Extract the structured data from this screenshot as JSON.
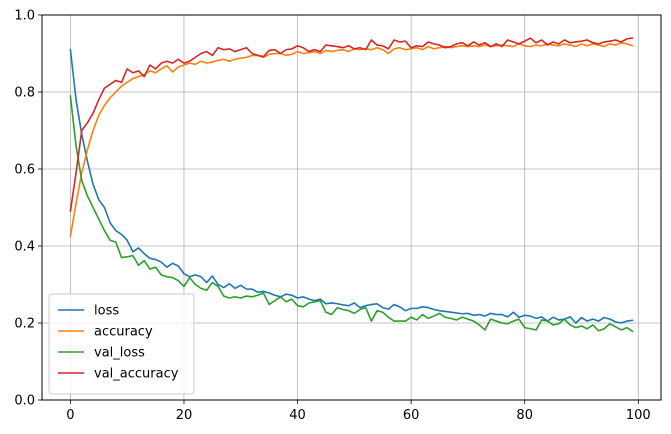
{
  "chart_data": {
    "type": "line",
    "title": "",
    "xlabel": "",
    "ylabel": "",
    "xlim": [
      -5,
      104
    ],
    "ylim": [
      0.0,
      1.0
    ],
    "x_ticks": [
      0,
      20,
      40,
      60,
      80,
      100
    ],
    "x_tick_labels": [
      "0",
      "20",
      "40",
      "60",
      "80",
      "100"
    ],
    "y_ticks": [
      0.0,
      0.2,
      0.4,
      0.6,
      0.8,
      1.0
    ],
    "y_tick_labels": [
      "0.0",
      "0.2",
      "0.4",
      "0.6",
      "0.8",
      "1.0"
    ],
    "grid": true,
    "legend_position": "lower-left",
    "x": [
      0,
      1,
      2,
      3,
      4,
      5,
      6,
      7,
      8,
      9,
      10,
      11,
      12,
      13,
      14,
      15,
      16,
      17,
      18,
      19,
      20,
      21,
      22,
      23,
      24,
      25,
      26,
      27,
      28,
      29,
      30,
      31,
      32,
      33,
      34,
      35,
      36,
      37,
      38,
      39,
      40,
      41,
      42,
      43,
      44,
      45,
      46,
      47,
      48,
      49,
      50,
      51,
      52,
      53,
      54,
      55,
      56,
      57,
      58,
      59,
      60,
      61,
      62,
      63,
      64,
      65,
      66,
      67,
      68,
      69,
      70,
      71,
      72,
      73,
      74,
      75,
      76,
      77,
      78,
      79,
      80,
      81,
      82,
      83,
      84,
      85,
      86,
      87,
      88,
      89,
      90,
      91,
      92,
      93,
      94,
      95,
      96,
      97,
      98,
      99
    ],
    "series": [
      {
        "name": "loss",
        "color": "#1f77b4",
        "values": [
          0.91,
          0.78,
          0.69,
          0.62,
          0.56,
          0.52,
          0.5,
          0.46,
          0.44,
          0.43,
          0.415,
          0.385,
          0.395,
          0.38,
          0.368,
          0.365,
          0.358,
          0.345,
          0.355,
          0.348,
          0.328,
          0.32,
          0.325,
          0.32,
          0.305,
          0.322,
          0.3,
          0.292,
          0.302,
          0.29,
          0.298,
          0.288,
          0.288,
          0.28,
          0.282,
          0.278,
          0.272,
          0.268,
          0.275,
          0.272,
          0.265,
          0.268,
          0.262,
          0.258,
          0.262,
          0.25,
          0.252,
          0.25,
          0.247,
          0.245,
          0.252,
          0.24,
          0.245,
          0.248,
          0.25,
          0.24,
          0.236,
          0.248,
          0.242,
          0.232,
          0.238,
          0.238,
          0.242,
          0.24,
          0.235,
          0.232,
          0.23,
          0.228,
          0.226,
          0.224,
          0.225,
          0.22,
          0.222,
          0.218,
          0.225,
          0.222,
          0.222,
          0.216,
          0.228,
          0.215,
          0.22,
          0.218,
          0.212,
          0.216,
          0.205,
          0.215,
          0.208,
          0.21,
          0.216,
          0.2,
          0.214,
          0.205,
          0.21,
          0.205,
          0.214,
          0.21,
          0.203,
          0.2,
          0.205,
          0.207
        ]
      },
      {
        "name": "accuracy",
        "color": "#ff7f0e",
        "values": [
          0.425,
          0.51,
          0.59,
          0.65,
          0.7,
          0.74,
          0.765,
          0.785,
          0.8,
          0.815,
          0.825,
          0.835,
          0.84,
          0.845,
          0.855,
          0.85,
          0.86,
          0.868,
          0.852,
          0.865,
          0.87,
          0.875,
          0.872,
          0.88,
          0.875,
          0.878,
          0.882,
          0.885,
          0.88,
          0.885,
          0.888,
          0.89,
          0.895,
          0.895,
          0.89,
          0.898,
          0.9,
          0.9,
          0.895,
          0.898,
          0.905,
          0.9,
          0.902,
          0.905,
          0.9,
          0.908,
          0.905,
          0.908,
          0.91,
          0.905,
          0.912,
          0.91,
          0.912,
          0.91,
          0.915,
          0.91,
          0.9,
          0.912,
          0.915,
          0.91,
          0.912,
          0.915,
          0.91,
          0.918,
          0.912,
          0.915,
          0.918,
          0.915,
          0.918,
          0.92,
          0.918,
          0.92,
          0.918,
          0.922,
          0.918,
          0.92,
          0.922,
          0.92,
          0.918,
          0.925,
          0.92,
          0.918,
          0.922,
          0.92,
          0.925,
          0.922,
          0.92,
          0.925,
          0.922,
          0.918,
          0.925,
          0.92,
          0.925,
          0.922,
          0.918,
          0.925,
          0.922,
          0.928,
          0.925,
          0.92
        ]
      },
      {
        "name": "val_loss",
        "color": "#2ca02c",
        "values": [
          0.79,
          0.66,
          0.57,
          0.53,
          0.5,
          0.47,
          0.44,
          0.415,
          0.41,
          0.37,
          0.372,
          0.375,
          0.35,
          0.362,
          0.34,
          0.345,
          0.325,
          0.32,
          0.318,
          0.31,
          0.295,
          0.318,
          0.3,
          0.29,
          0.285,
          0.305,
          0.295,
          0.27,
          0.265,
          0.268,
          0.265,
          0.27,
          0.268,
          0.272,
          0.278,
          0.248,
          0.258,
          0.268,
          0.255,
          0.262,
          0.245,
          0.242,
          0.252,
          0.255,
          0.258,
          0.228,
          0.222,
          0.24,
          0.235,
          0.232,
          0.225,
          0.235,
          0.24,
          0.205,
          0.232,
          0.228,
          0.215,
          0.205,
          0.205,
          0.205,
          0.215,
          0.208,
          0.222,
          0.212,
          0.218,
          0.225,
          0.215,
          0.212,
          0.208,
          0.215,
          0.21,
          0.205,
          0.195,
          0.182,
          0.21,
          0.205,
          0.2,
          0.198,
          0.205,
          0.21,
          0.188,
          0.185,
          0.182,
          0.208,
          0.205,
          0.195,
          0.198,
          0.21,
          0.195,
          0.188,
          0.192,
          0.185,
          0.195,
          0.18,
          0.185,
          0.198,
          0.19,
          0.182,
          0.188,
          0.178
        ]
      },
      {
        "name": "val_accuracy",
        "color": "#d62728",
        "values": [
          0.49,
          0.59,
          0.7,
          0.72,
          0.745,
          0.78,
          0.81,
          0.82,
          0.83,
          0.825,
          0.86,
          0.85,
          0.855,
          0.84,
          0.87,
          0.86,
          0.875,
          0.88,
          0.875,
          0.885,
          0.875,
          0.88,
          0.89,
          0.9,
          0.905,
          0.895,
          0.915,
          0.91,
          0.912,
          0.905,
          0.91,
          0.915,
          0.9,
          0.895,
          0.892,
          0.908,
          0.91,
          0.9,
          0.91,
          0.912,
          0.92,
          0.915,
          0.905,
          0.91,
          0.905,
          0.922,
          0.92,
          0.918,
          0.915,
          0.92,
          0.912,
          0.915,
          0.91,
          0.935,
          0.922,
          0.92,
          0.912,
          0.935,
          0.93,
          0.932,
          0.915,
          0.92,
          0.918,
          0.93,
          0.925,
          0.922,
          0.915,
          0.918,
          0.925,
          0.928,
          0.92,
          0.93,
          0.922,
          0.928,
          0.918,
          0.925,
          0.918,
          0.935,
          0.93,
          0.925,
          0.932,
          0.94,
          0.928,
          0.935,
          0.922,
          0.93,
          0.925,
          0.935,
          0.928,
          0.93,
          0.932,
          0.935,
          0.928,
          0.925,
          0.93,
          0.932,
          0.935,
          0.93,
          0.938,
          0.94
        ]
      }
    ]
  }
}
